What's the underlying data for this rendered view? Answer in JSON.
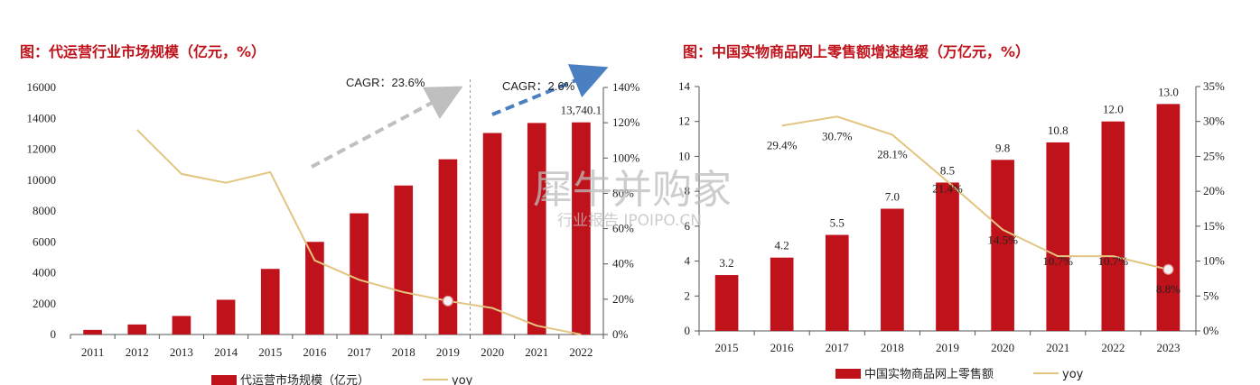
{
  "charts": [
    {
      "title": "图：代运营行业市场规模（亿元，%）",
      "type": "bar+line",
      "categories": [
        "2011",
        "2012",
        "2013",
        "2014",
        "2015",
        "2016",
        "2017",
        "2018",
        "2019",
        "2020",
        "2021",
        "2022"
      ],
      "bar_series": {
        "name": "代运营市场规模（亿元）",
        "values": [
          300,
          650,
          1200,
          2250,
          4250,
          6000,
          7850,
          9650,
          11350,
          13050,
          13700,
          13740.1
        ]
      },
      "line_series": {
        "name": "yoy",
        "values": [
          null,
          116,
          91,
          86,
          92,
          42,
          31,
          24,
          19,
          15,
          5,
          0
        ]
      },
      "data_labels": [
        {
          "index": 11,
          "text": "13,740.1"
        }
      ],
      "annotations": [
        {
          "text": "CAGR：23.6%",
          "from": 2016,
          "to": 2019
        },
        {
          "text": "CAGR：2.6%",
          "from": 2020,
          "to": 2022
        }
      ],
      "divider_after_index": 8,
      "highlight_point_index": 8,
      "yleft": {
        "min": 0,
        "max": 16000,
        "step": 2000,
        "ticks": [
          "0",
          "2000",
          "4000",
          "6000",
          "8000",
          "10000",
          "12000",
          "14000",
          "16000"
        ]
      },
      "yright": {
        "min": 0,
        "max": 140,
        "step": 20,
        "ticks": [
          "0%",
          "20%",
          "40%",
          "60%",
          "80%",
          "100%",
          "120%",
          "140%"
        ]
      },
      "legend_position": "bottom"
    },
    {
      "title": "图：中国实物商品网上零售额增速趋缓（万亿元，%）",
      "type": "bar+line",
      "categories": [
        "2015",
        "2016",
        "2017",
        "2018",
        "2019",
        "2020",
        "2021",
        "2022",
        "2023"
      ],
      "bar_series": {
        "name": "中国实物商品网上零售额",
        "values": [
          3.2,
          4.2,
          5.5,
          7.0,
          8.5,
          9.8,
          10.8,
          12.0,
          13.0
        ]
      },
      "bar_labels": [
        "3.2",
        "4.2",
        "5.5",
        "7.0",
        "8.5",
        "9.8",
        "10.8",
        "12.0",
        "13.0"
      ],
      "line_series": {
        "name": "yoy",
        "values": [
          null,
          29.4,
          30.7,
          28.1,
          21.4,
          14.5,
          10.7,
          10.7,
          8.8
        ]
      },
      "line_labels": [
        "",
        "29.4%",
        "30.7%",
        "28.1%",
        "21.4%",
        "14.5%",
        "10.7%",
        "10.7%",
        "8.8%"
      ],
      "highlight_point_index": 8,
      "yleft": {
        "min": 0,
        "max": 14,
        "step": 2,
        "ticks": [
          "0",
          "2",
          "4",
          "6",
          "8",
          "10",
          "12",
          "14"
        ]
      },
      "yright": {
        "min": 0,
        "max": 35,
        "step": 5,
        "ticks": [
          "0%",
          "5%",
          "10%",
          "15%",
          "20%",
          "25%",
          "30%",
          "35%"
        ]
      },
      "legend_position": "bottom"
    }
  ],
  "watermark": {
    "line1": "犀牛并购家",
    "line2": "行业报告 IPOIPO.CN"
  },
  "colors": {
    "bar": "#c0121a",
    "line": "#e3c582",
    "title": "#c0121a",
    "arrow_gray": "#bfbfbf",
    "arrow_blue": "#4a7fc1"
  }
}
